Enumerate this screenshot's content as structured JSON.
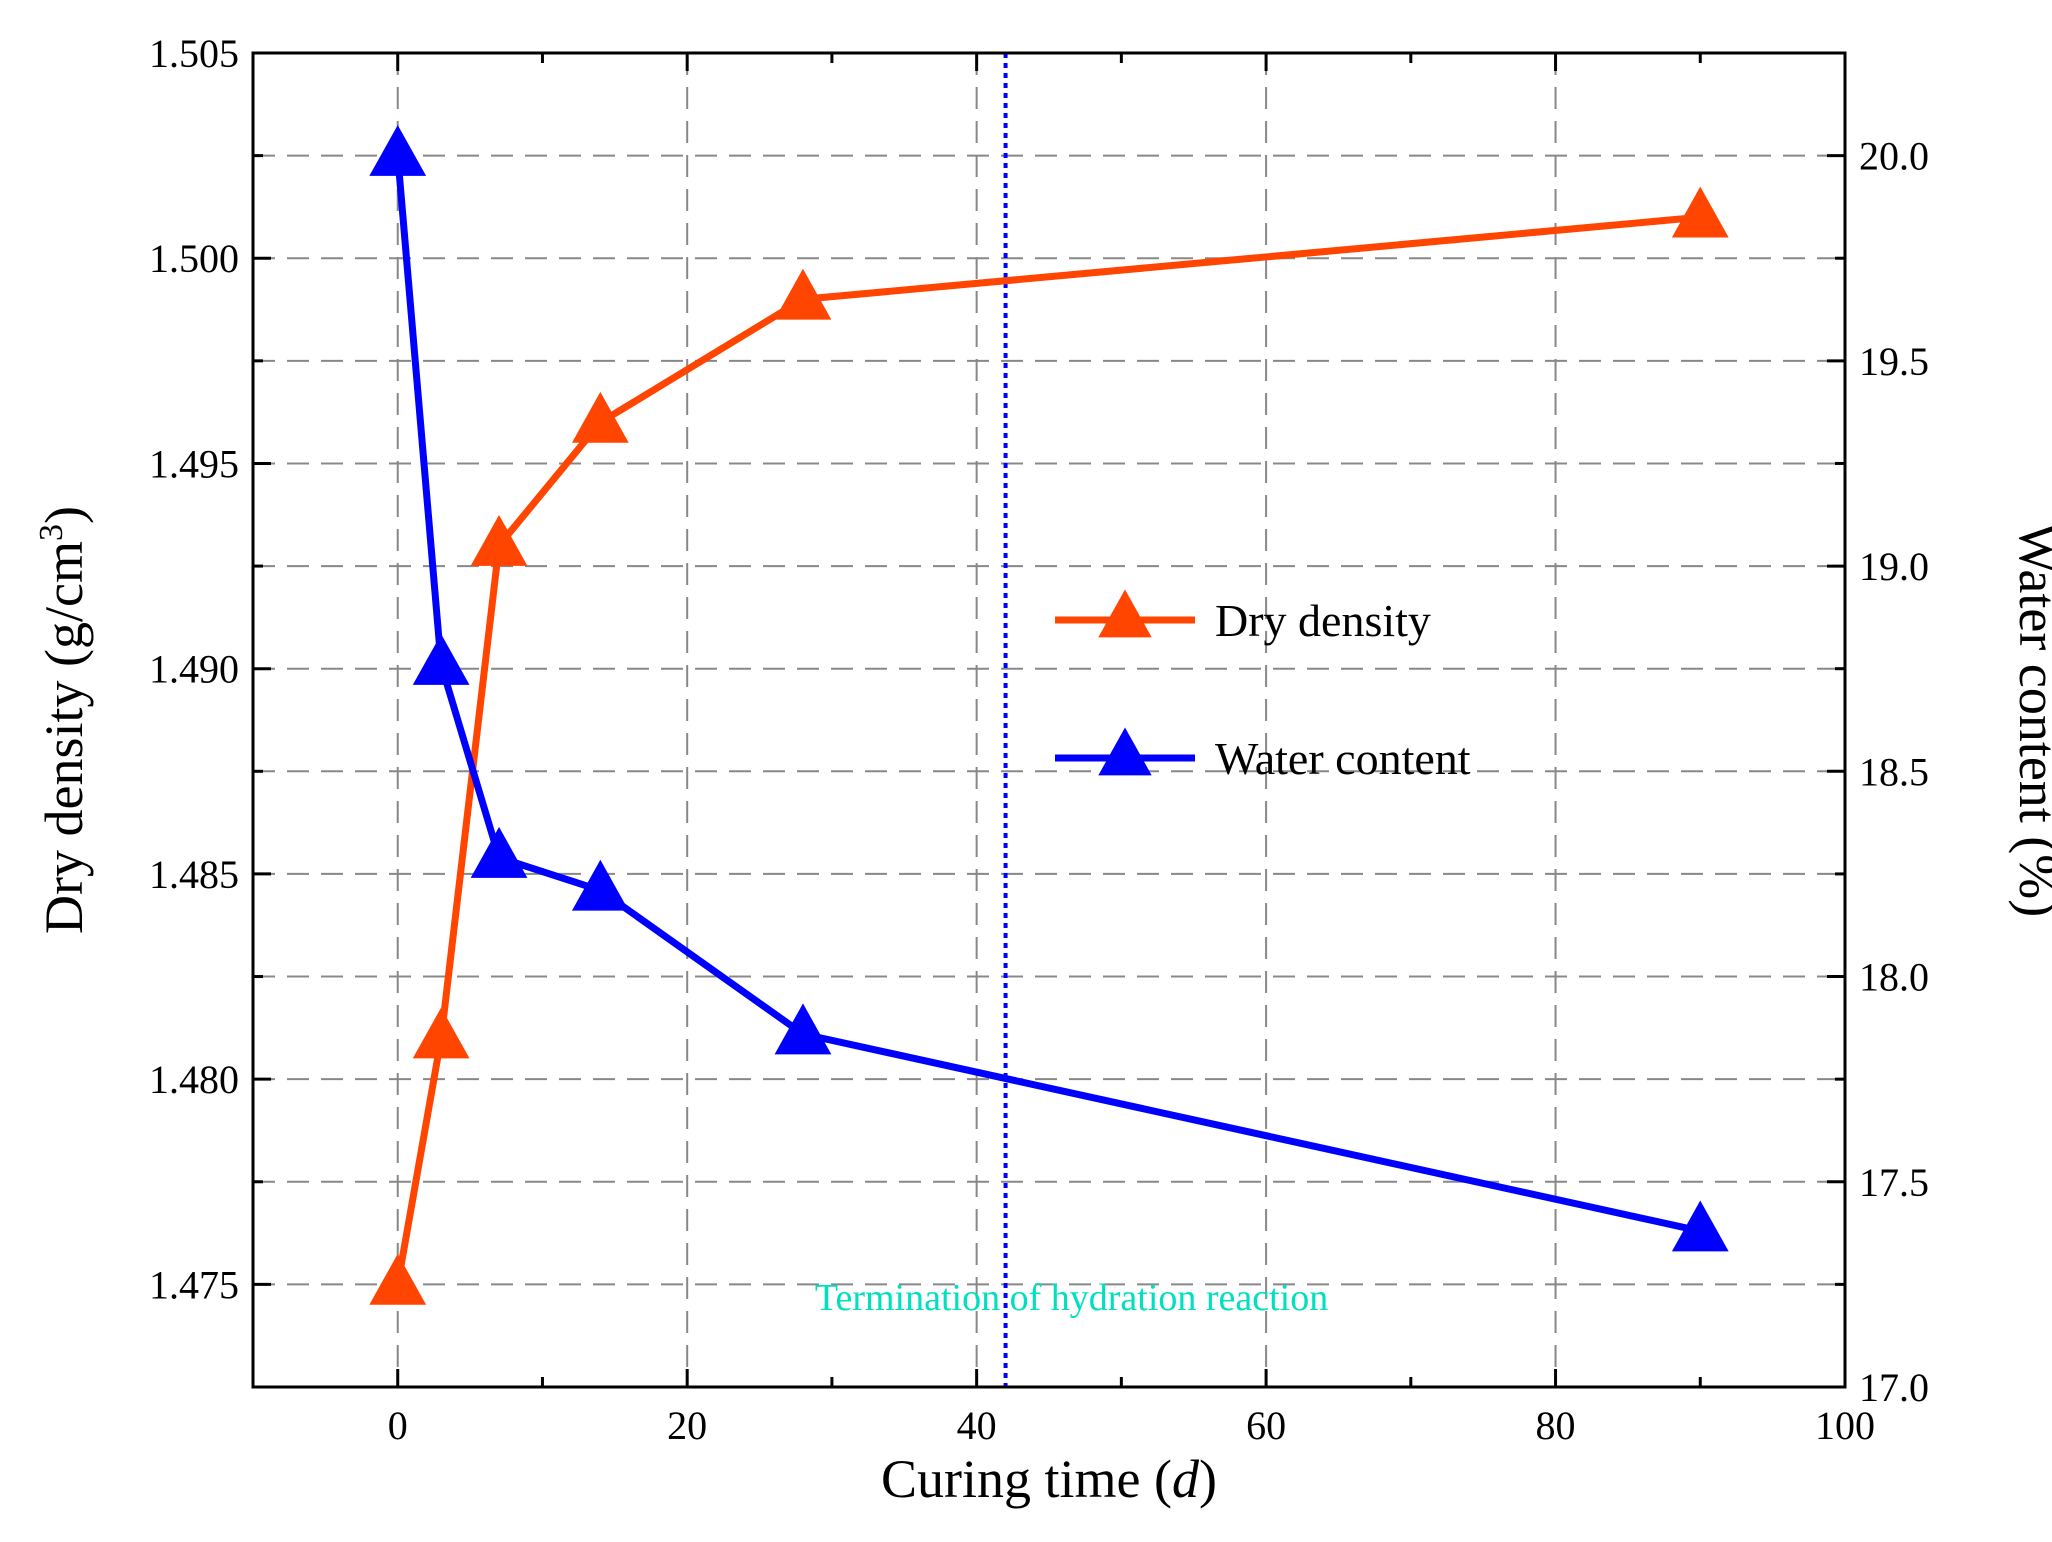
{
  "chart_data": {
    "type": "line",
    "xlabel": "Curing time (d)",
    "xlabel_parts": [
      "Curing time (",
      "d",
      ")"
    ],
    "ylabel_left": "Dry density (g/cm3)",
    "ylabel_left_parts": [
      "Dry density (g/cm",
      "3",
      ")"
    ],
    "ylabel_right": "Water content (%)",
    "x_ticks": [
      "0",
      "20",
      "40",
      "60",
      "80",
      "100"
    ],
    "x_tick_values": [
      0,
      20,
      40,
      60,
      80,
      100
    ],
    "y_left_ticks": [
      "1.475",
      "1.480",
      "1.485",
      "1.490",
      "1.495",
      "1.500",
      "1.505"
    ],
    "y_left_tick_values": [
      1.475,
      1.48,
      1.485,
      1.49,
      1.495,
      1.5,
      1.505
    ],
    "y_right_ticks": [
      "17.0",
      "17.5",
      "18.0",
      "18.5",
      "19.0",
      "19.5",
      "20.0"
    ],
    "y_right_tick_values": [
      17.0,
      17.5,
      18.0,
      18.5,
      19.0,
      19.5,
      20.0
    ],
    "xlim": [
      -10,
      100
    ],
    "ylim_left": [
      1.4725,
      1.505
    ],
    "ylim_right": [
      17.0,
      20.25
    ],
    "grid": true,
    "legend_position": "center-right",
    "series": [
      {
        "name": "Dry density",
        "axis": "left",
        "color": "#ff4500",
        "marker": "triangle",
        "x": [
          0,
          3,
          7,
          14,
          28,
          90
        ],
        "y": [
          1.475,
          1.481,
          1.493,
          1.496,
          1.499,
          1.501
        ]
      },
      {
        "name": "Water content",
        "axis": "right",
        "color": "#0000ff",
        "marker": "triangle",
        "x": [
          0,
          3,
          7,
          14,
          28,
          90
        ],
        "y": [
          20.0,
          18.76,
          18.29,
          18.21,
          17.86,
          17.38
        ]
      }
    ],
    "annotations": [
      {
        "type": "vline",
        "x": 42,
        "color": "#0000ff",
        "style": "dotted",
        "label": "Termination of hydration reaction",
        "label_color": "#00e0c0"
      }
    ]
  }
}
